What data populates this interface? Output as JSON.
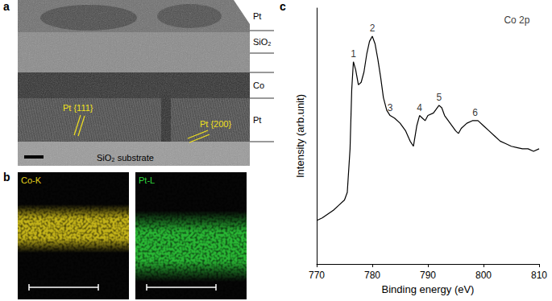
{
  "panel_labels": [
    "a",
    "b",
    "c"
  ],
  "tem_image": {
    "layer_labels": [
      "Pt",
      "SiO₂",
      "Co",
      "Pt"
    ],
    "lattice_labels": [
      "Pt {111}",
      "Pt {200}"
    ],
    "substrate_label": "SiO₂ substrate"
  },
  "eds_maps": [
    {
      "label": "Co-K",
      "color": "#e2cf1c"
    },
    {
      "label": "Pt-L",
      "color": "#2fd43c"
    }
  ],
  "chart_data": {
    "type": "line",
    "x_label": "Binding energy (eV)",
    "y_label": "Intensity (arb.unit)",
    "x": [
      770,
      771,
      772,
      773,
      774,
      775,
      775.5,
      776,
      776.3,
      776.6,
      777,
      777.5,
      778,
      778.5,
      779,
      779.5,
      780,
      780.5,
      781,
      781.5,
      782,
      782.6,
      783.2,
      784,
      785,
      786,
      786.8,
      787.4,
      788,
      788.5,
      789,
      789.5,
      790,
      791,
      792,
      792.5,
      793,
      794,
      795,
      795.5,
      796,
      797,
      798,
      799,
      800,
      801,
      802,
      803,
      804,
      805,
      806,
      807,
      808,
      809,
      810
    ],
    "values": [
      17,
      18,
      19.5,
      21,
      23,
      25,
      28,
      45,
      68,
      79,
      76,
      70,
      71,
      75,
      82,
      87,
      89,
      86,
      80,
      73,
      65,
      60,
      58,
      57,
      55,
      52,
      48,
      46,
      54,
      58,
      57,
      56,
      58,
      59,
      62,
      61,
      58,
      55,
      52,
      51,
      53,
      55,
      56,
      56,
      54,
      52,
      50,
      48,
      47,
      46,
      45.5,
      45,
      45,
      44,
      45
    ],
    "color": "#000000",
    "xlim": [
      770,
      810
    ],
    "xticks": [
      770,
      780,
      790,
      800,
      810
    ],
    "ylim": [
      0,
      100
    ],
    "tick_labels": "x",
    "grid": false,
    "annotations": [
      {
        "text": "1",
        "x": 776.6,
        "y": 79
      },
      {
        "text": "2",
        "x": 780,
        "y": 89
      },
      {
        "text": "3",
        "x": 783.2,
        "y": 58
      },
      {
        "text": "4",
        "x": 788.5,
        "y": 58
      },
      {
        "text": "5",
        "x": 792,
        "y": 62
      },
      {
        "text": "6",
        "x": 798.5,
        "y": 56
      },
      {
        "text": "Co 2p",
        "x": 806,
        "y": 92
      }
    ]
  }
}
